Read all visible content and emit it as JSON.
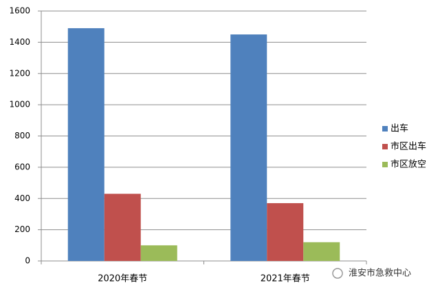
{
  "chart_data": {
    "type": "bar",
    "categories": [
      "2020年春节",
      "2021年春节"
    ],
    "series": [
      {
        "name": "出车",
        "color": "#4f81bd",
        "values": [
          1490,
          1450
        ]
      },
      {
        "name": "市区出车",
        "color": "#c0504d",
        "values": [
          430,
          370
        ]
      },
      {
        "name": "市区放空",
        "color": "#9bbb59",
        "values": [
          100,
          120
        ]
      }
    ],
    "ylim": [
      0,
      1600
    ],
    "yticks": [
      0,
      200,
      400,
      600,
      800,
      1000,
      1200,
      1400,
      1600
    ],
    "grid": true,
    "legend": "right",
    "annotation": "淮安市急救中心"
  }
}
